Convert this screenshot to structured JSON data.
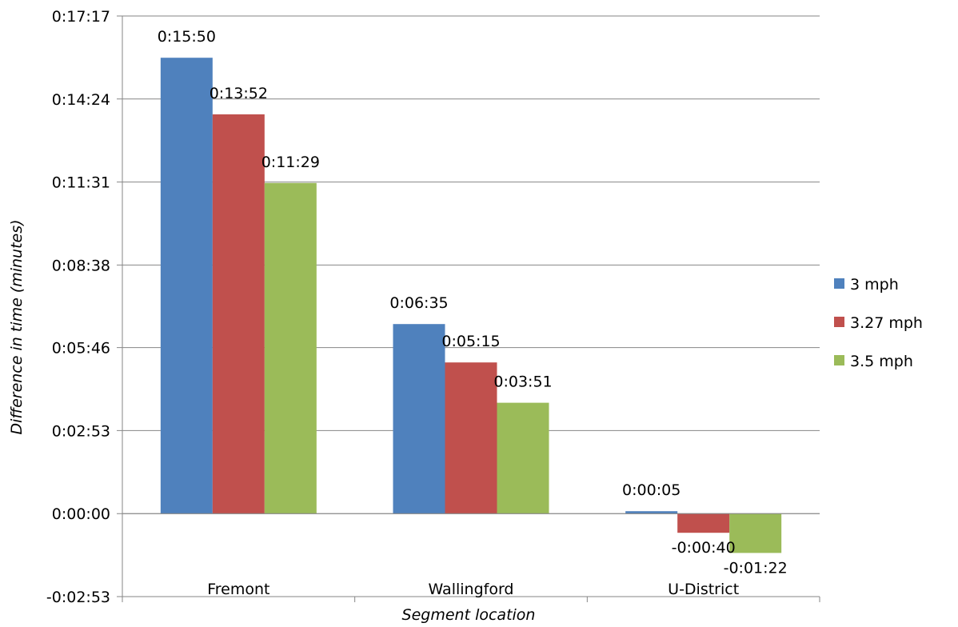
{
  "chart_data": {
    "type": "bar",
    "title": "",
    "xlabel": "Segment location",
    "ylabel": "Difference in time (minutes)",
    "categories": [
      "Fremont",
      "Wallingford",
      "U-District"
    ],
    "y_unit": "seconds",
    "ylim": [
      -173,
      1037
    ],
    "y_ticks": [
      -173,
      0,
      173,
      346,
      518,
      691,
      864,
      1037
    ],
    "y_tick_labels": [
      "-0:02:53",
      "0:00:00",
      "0:02:53",
      "0:05:46",
      "0:08:38",
      "0:11:31",
      "0:14:24",
      "0:17:17"
    ],
    "grid": true,
    "legend_position": "right",
    "series": [
      {
        "name": "3 mph",
        "color": "#4F81BD",
        "values": [
          950,
          395,
          5
        ],
        "labels": [
          "0:15:50",
          "0:06:35",
          "0:00:05"
        ]
      },
      {
        "name": "3.27 mph",
        "color": "#C0504D",
        "values": [
          832,
          315,
          -40
        ],
        "labels": [
          "0:13:52",
          "0:05:15",
          "-0:00:40"
        ]
      },
      {
        "name": "3.5 mph",
        "color": "#9BBB59",
        "values": [
          689,
          231,
          -82
        ],
        "labels": [
          "0:11:29",
          "0:03:51",
          "-0:01:22"
        ]
      }
    ]
  }
}
